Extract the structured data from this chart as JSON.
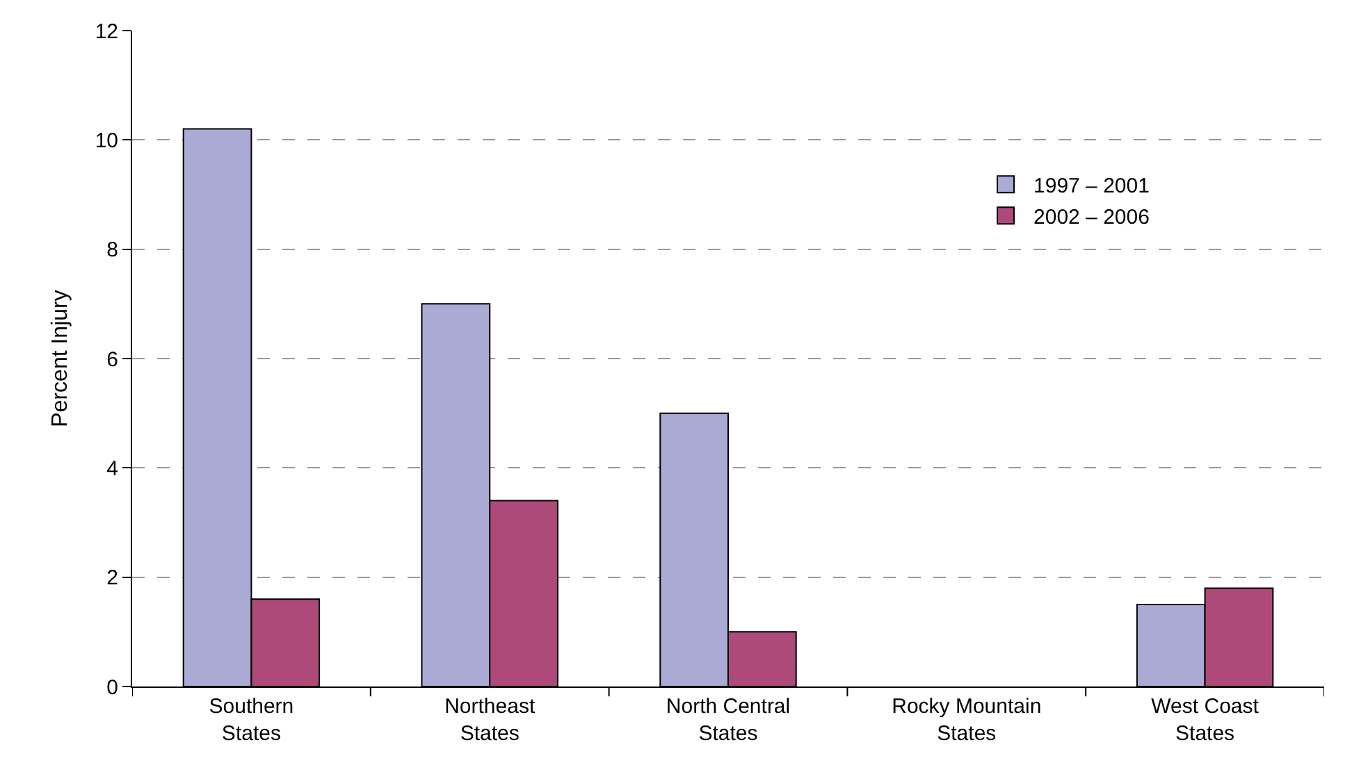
{
  "chart_data": {
    "type": "bar",
    "ylabel": "Percent Injury",
    "categories": [
      "Southern\nStates",
      "Northeast\nStates",
      "North Central\nStates",
      "Rocky Mountain\nStates",
      "West Coast\nStates"
    ],
    "series": [
      {
        "name": "1997 – 2001",
        "color": "#aaaad4",
        "values": [
          10.2,
          7.0,
          5.0,
          null,
          1.5
        ]
      },
      {
        "name": "2002 – 2006",
        "color": "#ae4a79",
        "values": [
          1.6,
          3.4,
          1.0,
          null,
          1.8
        ]
      }
    ],
    "ylim": [
      0,
      12
    ],
    "yticks": [
      0,
      2,
      4,
      6,
      8,
      10,
      12
    ],
    "grid": "y",
    "legend": "top right"
  }
}
